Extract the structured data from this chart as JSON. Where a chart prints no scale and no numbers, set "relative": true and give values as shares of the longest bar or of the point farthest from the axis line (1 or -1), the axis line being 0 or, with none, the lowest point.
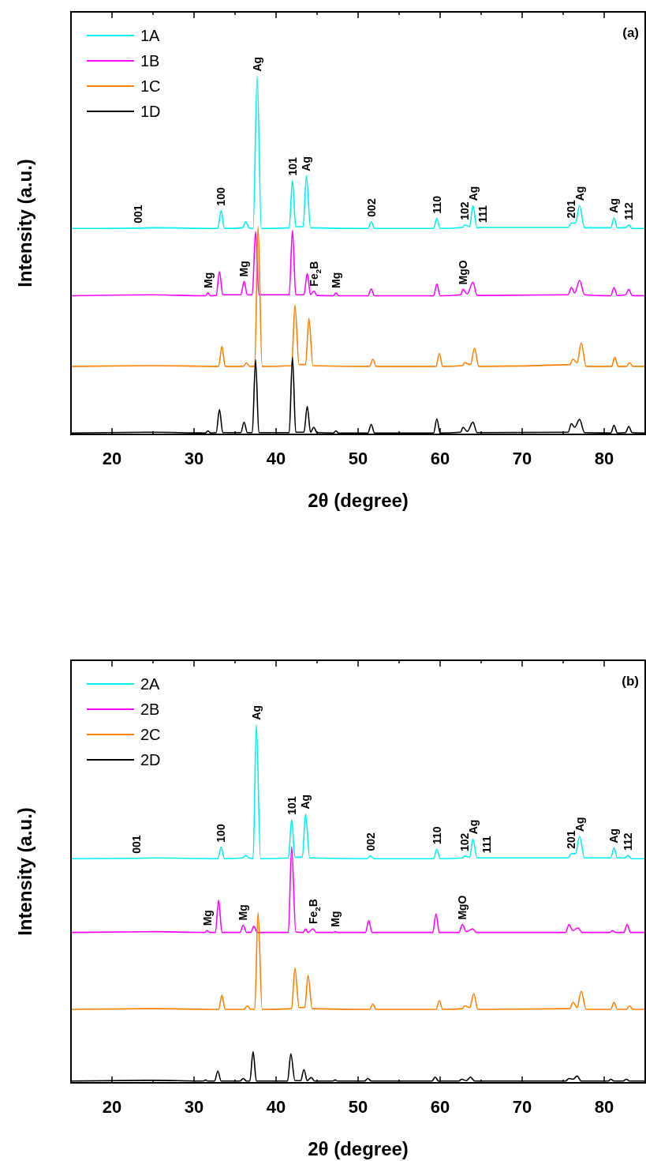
{
  "chart_data": [
    {
      "type": "line",
      "title": "(a)",
      "xlabel": "2θ (degree)",
      "ylabel": "Intensity (a.u.)",
      "relative": true,
      "legend": "top left",
      "xlim": [
        15,
        85
      ],
      "xticks": [
        20,
        {
          "value": 25,
          "label": null
        },
        30,
        {
          "value": 35,
          "label": null
        },
        40,
        {
          "value": 45,
          "label": null
        },
        50,
        {
          "value": 55,
          "label": null
        },
        60,
        {
          "value": 65,
          "label": null
        },
        70,
        {
          "value": 75,
          "label": null
        },
        80
      ],
      "series": [
        {
          "name": "1A",
          "color": "#00f0f0",
          "x": [
            15,
            23.2,
            25,
            32.9,
            33.3,
            33.7,
            35.9,
            36.3,
            36.7,
            37.2,
            37.7,
            38.2,
            41.6,
            42.0,
            42.4,
            43.3,
            43.7,
            44.2,
            51.2,
            51.6,
            52.0,
            59.2,
            59.6,
            60.0,
            62.7,
            63.0,
            63.6,
            64.0,
            64.5,
            65.2,
            75.6,
            76.0,
            76.5,
            77.0,
            77.6,
            80.8,
            81.2,
            81.6,
            82.6,
            83.0,
            83.4,
            85
          ],
          "values": [
            0.575,
            0.576,
            0.577,
            0.575,
            0.625,
            0.575,
            0.577,
            0.594,
            0.577,
            0.575,
            1.0,
            0.575,
            0.577,
            0.709,
            0.58,
            0.58,
            0.722,
            0.577,
            0.575,
            0.594,
            0.575,
            0.575,
            0.603,
            0.575,
            0.578,
            0.585,
            0.58,
            0.639,
            0.577,
            0.578,
            0.578,
            0.59,
            0.59,
            0.639,
            0.577,
            0.577,
            0.605,
            0.577,
            0.577,
            0.585,
            0.575,
            0.575
          ]
        },
        {
          "name": "1B",
          "color": "#ff00ff",
          "x": [
            15,
            25,
            31.4,
            31.7,
            32.0,
            32.7,
            33.1,
            33.5,
            35.7,
            36.1,
            36.5,
            37.1,
            37.5,
            37.9,
            41.6,
            42.0,
            42.4,
            43.4,
            43.8,
            44.2,
            44.6,
            45.0,
            47.0,
            47.3,
            47.6,
            51.2,
            51.6,
            52.0,
            59.2,
            59.6,
            60.0,
            62.5,
            62.8,
            63.3,
            64.0,
            64.5,
            75.6,
            76.0,
            76.4,
            77.0,
            77.6,
            80.8,
            81.2,
            81.6,
            82.6,
            83.0,
            83.4,
            85
          ],
          "values": [
            0.387,
            0.39,
            0.387,
            0.395,
            0.387,
            0.388,
            0.455,
            0.39,
            0.39,
            0.427,
            0.39,
            0.39,
            0.566,
            0.39,
            0.39,
            0.57,
            0.39,
            0.39,
            0.45,
            0.39,
            0.4,
            0.388,
            0.387,
            0.395,
            0.387,
            0.387,
            0.406,
            0.387,
            0.387,
            0.42,
            0.387,
            0.39,
            0.405,
            0.392,
            0.425,
            0.388,
            0.39,
            0.41,
            0.395,
            0.43,
            0.39,
            0.387,
            0.41,
            0.388,
            0.39,
            0.405,
            0.388,
            0.387
          ]
        },
        {
          "name": "1C",
          "color": "#ff8000",
          "x": [
            15,
            25,
            33.0,
            33.4,
            33.8,
            36.0,
            36.4,
            36.8,
            37.4,
            37.8,
            38.3,
            41.9,
            42.3,
            42.8,
            43.6,
            44.0,
            44.5,
            51.4,
            51.8,
            52.2,
            59.5,
            59.9,
            60.3,
            62.7,
            63.0,
            63.7,
            64.2,
            64.7,
            75.8,
            76.2,
            76.7,
            77.2,
            77.8,
            80.9,
            81.3,
            81.7,
            82.7,
            83.1,
            83.5,
            85
          ],
          "values": [
            0.19,
            0.192,
            0.19,
            0.246,
            0.19,
            0.19,
            0.2,
            0.19,
            0.19,
            0.58,
            0.19,
            0.192,
            0.361,
            0.195,
            0.195,
            0.324,
            0.192,
            0.19,
            0.21,
            0.19,
            0.19,
            0.226,
            0.19,
            0.192,
            0.2,
            0.195,
            0.241,
            0.19,
            0.195,
            0.21,
            0.2,
            0.255,
            0.19,
            0.19,
            0.215,
            0.19,
            0.19,
            0.2,
            0.19,
            0.19
          ]
        },
        {
          "name": "1D",
          "color": "#000000",
          "x": [
            15,
            25,
            31.4,
            31.7,
            32.0,
            32.7,
            33.1,
            33.5,
            35.7,
            36.1,
            36.5,
            37.1,
            37.5,
            37.9,
            41.6,
            42.0,
            42.4,
            43.4,
            43.8,
            44.2,
            44.6,
            45.0,
            47.0,
            47.3,
            47.6,
            51.2,
            51.6,
            52.0,
            59.2,
            59.6,
            60.0,
            62.5,
            62.8,
            63.3,
            64.0,
            64.5,
            75.6,
            76.0,
            76.4,
            77.0,
            77.6,
            80.8,
            81.2,
            81.6,
            82.6,
            83.0,
            83.4,
            85
          ],
          "values": [
            0.004,
            0.006,
            0.004,
            0.01,
            0.004,
            0.005,
            0.07,
            0.005,
            0.005,
            0.034,
            0.005,
            0.005,
            0.209,
            0.005,
            0.005,
            0.216,
            0.006,
            0.006,
            0.078,
            0.006,
            0.02,
            0.005,
            0.004,
            0.01,
            0.004,
            0.004,
            0.028,
            0.004,
            0.004,
            0.043,
            0.004,
            0.006,
            0.02,
            0.008,
            0.034,
            0.005,
            0.006,
            0.03,
            0.02,
            0.042,
            0.005,
            0.004,
            0.025,
            0.004,
            0.005,
            0.022,
            0.005,
            0.004
          ]
        }
      ],
      "annotations": [
        {
          "text": "001",
          "x": 23.2,
          "y": 0.576
        },
        {
          "text": "100",
          "x": 33.3,
          "y": 0.625
        },
        {
          "text": "Ag",
          "x": 37.7,
          "y": 1.0
        },
        {
          "text": "101",
          "x": 42.0,
          "y": 0.709
        },
        {
          "text": "Ag",
          "x": 43.7,
          "y": 0.722
        },
        {
          "text": "002",
          "x": 51.6,
          "y": 0.594
        },
        {
          "text": "110",
          "x": 59.6,
          "y": 0.603
        },
        {
          "text": "102",
          "x": 63.0,
          "y": 0.585
        },
        {
          "text": "Ag",
          "x": 64.0,
          "y": 0.639
        },
        {
          "text": "111",
          "x": 65.2,
          "y": 0.578
        },
        {
          "text": "201",
          "x": 76.0,
          "y": 0.59
        },
        {
          "text": "Ag",
          "x": 77.0,
          "y": 0.639
        },
        {
          "text": "Ag",
          "x": 81.2,
          "y": 0.605
        },
        {
          "text": "112",
          "x": 83.0,
          "y": 0.585
        },
        {
          "text": "Mg",
          "x": 31.7,
          "y": 0.395
        },
        {
          "text": "Mg",
          "x": 36.1,
          "y": 0.427
        },
        {
          "text": "Fe$_{2}$B",
          "x": 44.6,
          "y": 0.4
        },
        {
          "text": "Mg",
          "x": 47.3,
          "y": 0.395
        },
        {
          "text": "MgO",
          "x": 62.8,
          "y": 0.405
        }
      ]
    },
    {
      "type": "line",
      "title": "(b)",
      "xlabel": "2θ (degree)",
      "ylabel": "Intensity (a.u.)",
      "relative": true,
      "legend": "top left",
      "xlim": [
        15,
        85
      ],
      "xticks": [
        20,
        {
          "value": 25,
          "label": null
        },
        30,
        {
          "value": 35,
          "label": null
        },
        40,
        {
          "value": 45,
          "label": null
        },
        50,
        {
          "value": 55,
          "label": null
        },
        60,
        {
          "value": 65,
          "label": null
        },
        70,
        {
          "value": 75,
          "label": null
        },
        80
      ],
      "series": [
        {
          "name": "2A",
          "color": "#00f0f0",
          "x": [
            15,
            23.0,
            25,
            32.9,
            33.3,
            33.7,
            35.9,
            36.3,
            36.7,
            37.2,
            37.6,
            38.1,
            41.5,
            41.9,
            42.3,
            43.2,
            43.6,
            44.1,
            51.1,
            51.5,
            51.9,
            59.2,
            59.6,
            60.0,
            62.7,
            63.0,
            63.6,
            64.0,
            64.5,
            65.7,
            75.6,
            76.0,
            76.5,
            77.0,
            77.6,
            80.8,
            81.2,
            81.6,
            82.5,
            82.9,
            83.3,
            85
          ],
          "values": [
            0.626,
            0.627,
            0.628,
            0.626,
            0.658,
            0.626,
            0.628,
            0.635,
            0.628,
            0.626,
            1.0,
            0.626,
            0.628,
            0.735,
            0.63,
            0.63,
            0.751,
            0.628,
            0.626,
            0.634,
            0.626,
            0.626,
            0.653,
            0.626,
            0.628,
            0.633,
            0.63,
            0.681,
            0.628,
            0.628,
            0.628,
            0.64,
            0.64,
            0.688,
            0.628,
            0.628,
            0.656,
            0.628,
            0.628,
            0.635,
            0.626,
            0.626
          ]
        },
        {
          "name": "2B",
          "color": "#ff00ff",
          "x": [
            15,
            25,
            31.3,
            31.6,
            31.9,
            32.6,
            33.0,
            33.4,
            35.6,
            36.0,
            36.4,
            36.9,
            37.3,
            37.7,
            41.5,
            41.9,
            42.4,
            43.3,
            43.6,
            43.9,
            44.5,
            44.9,
            46.9,
            47.2,
            47.5,
            50.9,
            51.3,
            51.7,
            59.1,
            59.5,
            59.9,
            62.3,
            62.7,
            63.2,
            64.0,
            64.4,
            75.3,
            75.7,
            76.2,
            76.8,
            77.3,
            80.7,
            81.0,
            81.4,
            82.4,
            82.8,
            83.2,
            85
          ],
          "values": [
            0.42,
            0.422,
            0.42,
            0.425,
            0.42,
            0.42,
            0.51,
            0.42,
            0.42,
            0.44,
            0.42,
            0.42,
            0.437,
            0.42,
            0.42,
            0.66,
            0.422,
            0.42,
            0.43,
            0.42,
            0.43,
            0.42,
            0.42,
            0.422,
            0.42,
            0.42,
            0.453,
            0.42,
            0.42,
            0.472,
            0.42,
            0.42,
            0.442,
            0.422,
            0.43,
            0.42,
            0.42,
            0.442,
            0.425,
            0.433,
            0.42,
            0.42,
            0.425,
            0.42,
            0.42,
            0.442,
            0.42,
            0.42
          ]
        },
        {
          "name": "2C",
          "color": "#ff8000",
          "x": [
            15,
            25,
            33.0,
            33.4,
            33.8,
            36.1,
            36.5,
            36.9,
            37.4,
            37.8,
            38.3,
            41.9,
            42.3,
            42.8,
            43.5,
            43.9,
            44.4,
            51.4,
            51.8,
            52.2,
            59.5,
            59.9,
            60.3,
            62.7,
            63.0,
            63.6,
            64.1,
            64.6,
            75.8,
            76.2,
            76.7,
            77.2,
            77.8,
            80.8,
            81.2,
            81.6,
            82.7,
            83.1,
            83.5,
            85
          ],
          "values": [
            0.205,
            0.207,
            0.205,
            0.244,
            0.205,
            0.205,
            0.215,
            0.205,
            0.205,
            0.476,
            0.205,
            0.207,
            0.321,
            0.21,
            0.21,
            0.3,
            0.207,
            0.205,
            0.22,
            0.205,
            0.205,
            0.23,
            0.205,
            0.207,
            0.215,
            0.21,
            0.249,
            0.205,
            0.207,
            0.225,
            0.21,
            0.256,
            0.205,
            0.205,
            0.225,
            0.205,
            0.205,
            0.215,
            0.205,
            0.205
          ]
        },
        {
          "name": "2D",
          "color": "#000000",
          "x": [
            15,
            25,
            31.1,
            31.4,
            31.7,
            32.5,
            32.9,
            33.3,
            35.6,
            36.0,
            36.4,
            36.8,
            37.2,
            37.6,
            41.4,
            41.8,
            42.3,
            43.0,
            43.4,
            43.8,
            44.3,
            44.7,
            46.9,
            47.2,
            47.5,
            50.8,
            51.2,
            51.6,
            59.0,
            59.4,
            59.8,
            62.3,
            62.6,
            63.2,
            63.7,
            64.2,
            75.3,
            75.7,
            76.2,
            76.7,
            77.2,
            80.5,
            80.8,
            81.2,
            82.3,
            82.7,
            83.1,
            85
          ],
          "values": [
            0.005,
            0.007,
            0.005,
            0.008,
            0.005,
            0.005,
            0.033,
            0.005,
            0.005,
            0.012,
            0.005,
            0.005,
            0.087,
            0.005,
            0.005,
            0.081,
            0.006,
            0.006,
            0.037,
            0.006,
            0.015,
            0.005,
            0.005,
            0.008,
            0.005,
            0.005,
            0.012,
            0.005,
            0.005,
            0.016,
            0.005,
            0.005,
            0.01,
            0.006,
            0.016,
            0.005,
            0.005,
            0.012,
            0.01,
            0.019,
            0.005,
            0.005,
            0.01,
            0.005,
            0.005,
            0.01,
            0.005,
            0.005
          ]
        }
      ],
      "annotations": [
        {
          "text": "001",
          "x": 23.0,
          "y": 0.627
        },
        {
          "text": "100",
          "x": 33.3,
          "y": 0.658
        },
        {
          "text": "Ag",
          "x": 37.6,
          "y": 1.0
        },
        {
          "text": "101",
          "x": 41.9,
          "y": 0.735
        },
        {
          "text": "Ag",
          "x": 43.6,
          "y": 0.751
        },
        {
          "text": "002",
          "x": 51.5,
          "y": 0.634
        },
        {
          "text": "110",
          "x": 59.6,
          "y": 0.653
        },
        {
          "text": "102",
          "x": 63.0,
          "y": 0.633
        },
        {
          "text": "Ag",
          "x": 64.0,
          "y": 0.681
        },
        {
          "text": "111",
          "x": 65.7,
          "y": 0.628
        },
        {
          "text": "201",
          "x": 76.0,
          "y": 0.64
        },
        {
          "text": "Ag",
          "x": 77.0,
          "y": 0.688
        },
        {
          "text": "Ag",
          "x": 81.2,
          "y": 0.656
        },
        {
          "text": "112",
          "x": 82.9,
          "y": 0.635
        },
        {
          "text": "Mg",
          "x": 31.6,
          "y": 0.425
        },
        {
          "text": "Mg",
          "x": 36.0,
          "y": 0.44
        },
        {
          "text": "Fe$_{2}$B",
          "x": 44.5,
          "y": 0.43
        },
        {
          "text": "Mg",
          "x": 47.2,
          "y": 0.422
        },
        {
          "text": "MgO",
          "x": 62.7,
          "y": 0.442
        }
      ]
    }
  ]
}
